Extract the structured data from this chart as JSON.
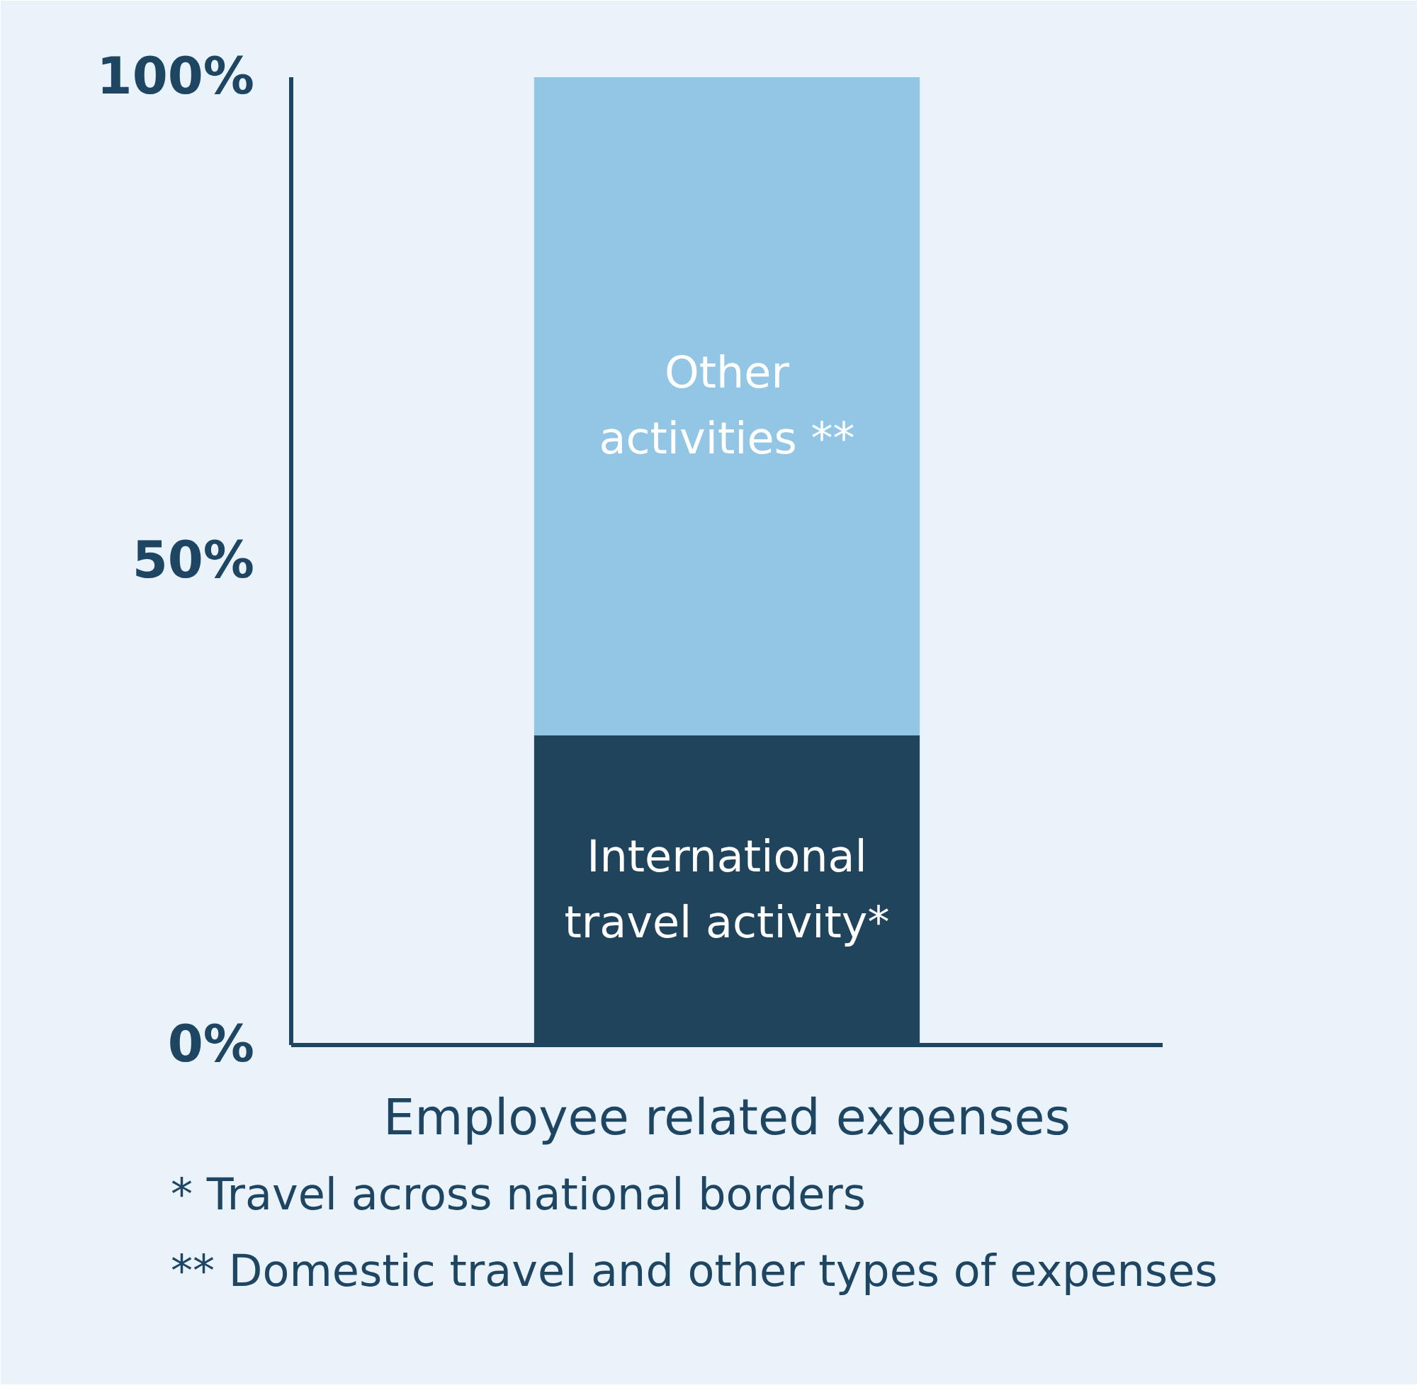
{
  "chart_data": {
    "type": "bar",
    "stacked": true,
    "categories": [
      "Employee related expenses"
    ],
    "series": [
      {
        "name": "International travel activity*",
        "color": "#20445c",
        "values": [
          32
        ]
      },
      {
        "name": "Other activities **",
        "color": "#93c5e4",
        "values": [
          68
        ]
      }
    ],
    "ylim": [
      0,
      100
    ],
    "yticks": [
      {
        "value": 0,
        "label": "0%"
      },
      {
        "value": 50,
        "label": "50%"
      },
      {
        "value": 100,
        "label": "100%"
      }
    ],
    "annotations": [
      "* Travel across national borders",
      "** Domestic travel and other types of expenses"
    ]
  }
}
